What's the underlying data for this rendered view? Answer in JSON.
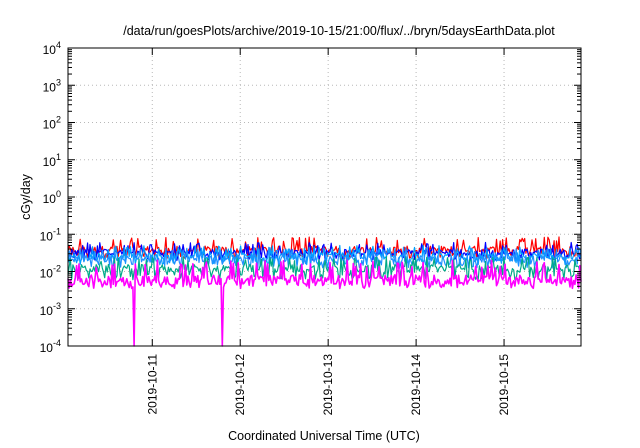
{
  "chart_data": {
    "type": "line",
    "title": "/data/run/goesPlots/archive/2019-10-15/21:00/flux/../bryn/5daysEarthData.plot",
    "xlabel": "Coordinated Universal Time (UTC)",
    "ylabel": "cGy/day",
    "yscale": "log",
    "ylim": [
      0.0001,
      10000
    ],
    "xlim": [
      "2019-10-10T01:00",
      "2019-10-15T21:00"
    ],
    "x_tick_labels": [
      "2019-10-11",
      "2019-10-12",
      "2019-10-13",
      "2019-10-14",
      "2019-10-15"
    ],
    "y_ticks": [
      {
        "base": "10",
        "exp": "-4"
      },
      {
        "base": "10",
        "exp": "-3"
      },
      {
        "base": "10",
        "exp": "-2"
      },
      {
        "base": "10",
        "exp": "-1"
      },
      {
        "base": "10",
        "exp": "0"
      },
      {
        "base": "10",
        "exp": "1"
      },
      {
        "base": "10",
        "exp": "2"
      },
      {
        "base": "10",
        "exp": "3"
      },
      {
        "base": "10",
        "exp": "4"
      }
    ],
    "grid": true,
    "legend": "none",
    "series": [
      {
        "color": "#ff0000",
        "typical": 0.038,
        "min": 0.022,
        "max": 0.085
      },
      {
        "color": "#0000ff",
        "typical": 0.033,
        "min": 0.02,
        "max": 0.06
      },
      {
        "color": "#00a0ff",
        "typical": 0.026,
        "min": 0.015,
        "max": 0.05
      },
      {
        "color": "#1e90ff",
        "typical": 0.022,
        "min": 0.012,
        "max": 0.045
      },
      {
        "color": "#00aa88",
        "typical": 0.012,
        "min": 0.006,
        "max": 0.025
      },
      {
        "color": "#ff00ff",
        "typical": 0.006,
        "min": 0.0035,
        "max": 0.02,
        "dropouts": [
          "2019-10-10T19:00",
          "2019-10-11T19:00"
        ]
      }
    ]
  }
}
